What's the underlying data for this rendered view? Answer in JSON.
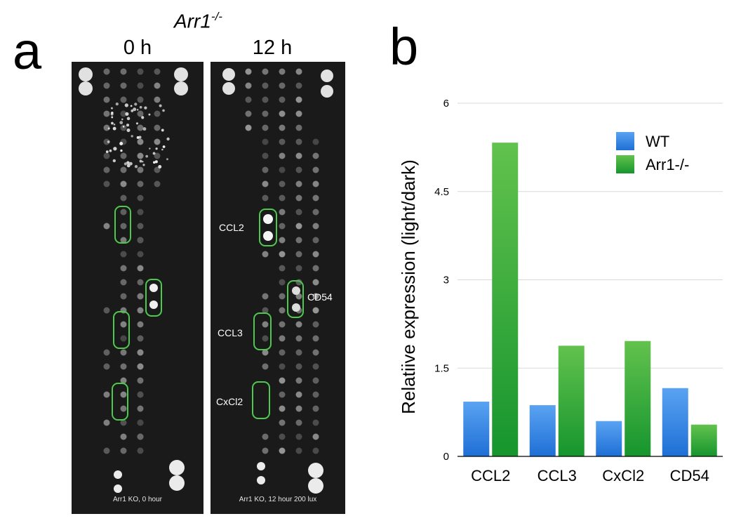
{
  "panel_a": {
    "letter": "a",
    "strain_base": "Arr1",
    "strain_sup": "-/-",
    "time_left": "0 h",
    "time_right": "12 h",
    "caption_left": "Arr1 KO, 0 hour",
    "caption_right": "Arr1 KO, 12 hour 200 lux",
    "gene_labels": [
      "CCL2",
      "CCL3",
      "CxCl2",
      "CD54"
    ],
    "highlight_color": "#4ec94e"
  },
  "chart_data": {
    "letter": "b",
    "type": "bar",
    "categories": [
      "CCL2",
      "CCL3",
      "CxCl2",
      "CD54"
    ],
    "series": [
      {
        "name": "WT",
        "values": [
          0.93,
          0.87,
          0.6,
          1.16
        ],
        "color": "#2f80e0"
      },
      {
        "name": "Arr1-/-",
        "values": [
          5.33,
          1.88,
          1.96,
          0.54
        ],
        "color": "#2aa836"
      }
    ],
    "ylabel": "Relatiive expression (light/dark)",
    "ylim": [
      0,
      6
    ],
    "yticks": [
      "0",
      "1.5",
      "3",
      "4.5",
      "6"
    ],
    "grid": true,
    "legend_position": "top-right"
  }
}
